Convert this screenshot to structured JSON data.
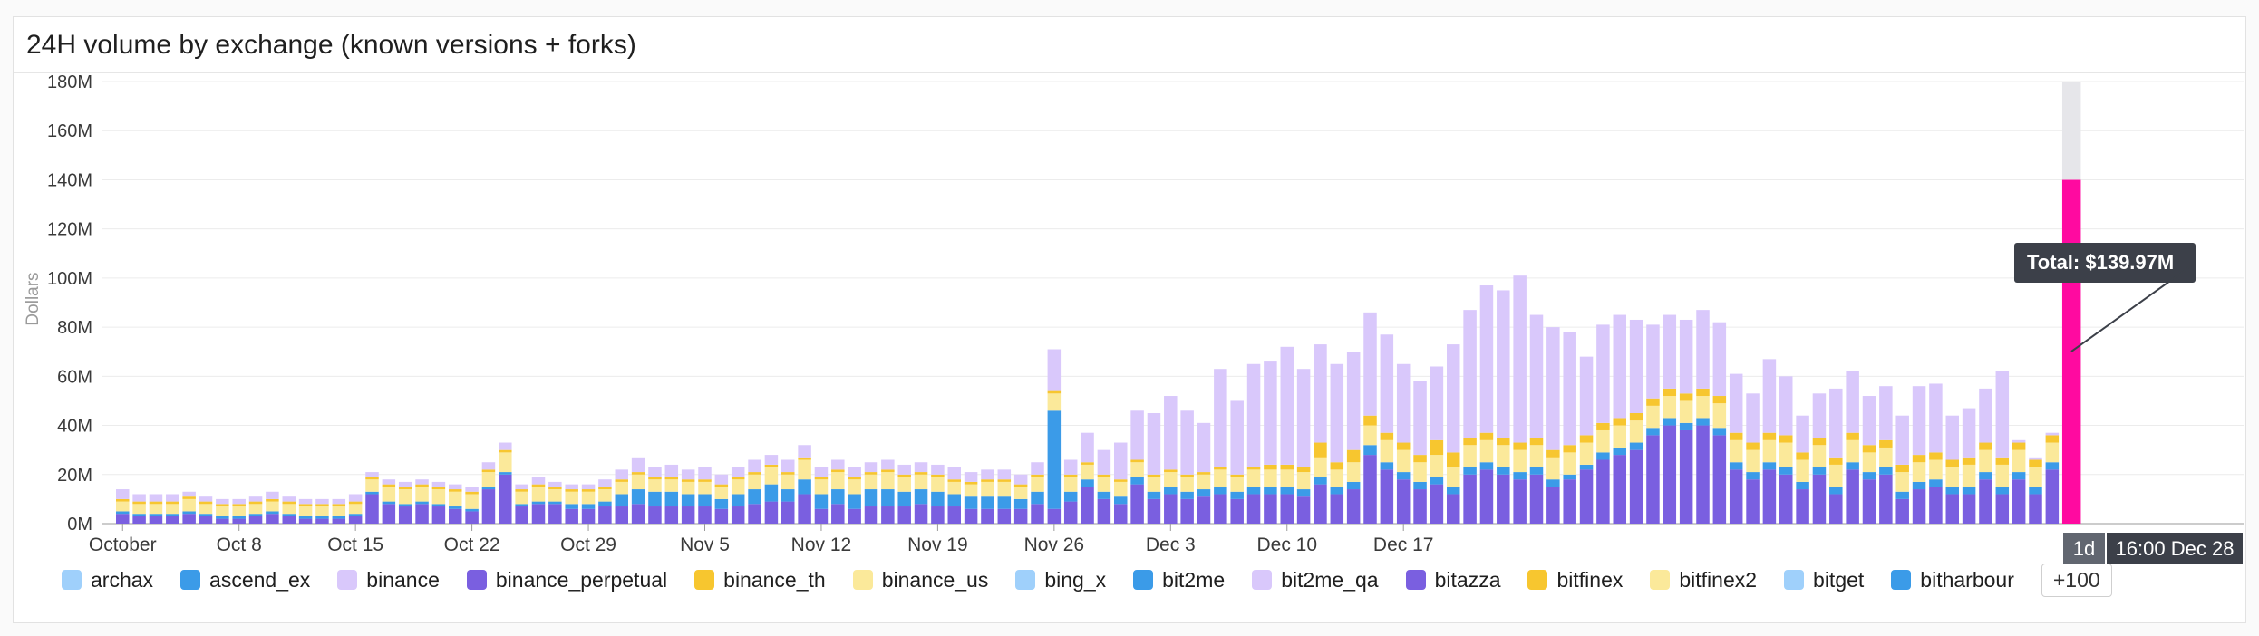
{
  "title": "24H volume by exchange (known versions + forks)",
  "timeframe": {
    "range": "1d",
    "time": "16:00 Dec 28"
  },
  "tooltip": {
    "text": "Total: $139.97M"
  },
  "legend": {
    "items": [
      {
        "name": "archax",
        "color": "#9fd0fb"
      },
      {
        "name": "ascend_ex",
        "color": "#3b9be8"
      },
      {
        "name": "binance",
        "color": "#d9c8fb"
      },
      {
        "name": "binance_perpetual",
        "color": "#7a5fe0"
      },
      {
        "name": "binance_th",
        "color": "#f7c62f"
      },
      {
        "name": "binance_us",
        "color": "#fbe99a"
      },
      {
        "name": "bing_x",
        "color": "#9fd0fb"
      },
      {
        "name": "bit2me",
        "color": "#3b9be8"
      },
      {
        "name": "bit2me_qa",
        "color": "#d9c8fb"
      },
      {
        "name": "bitazza",
        "color": "#7a5fe0"
      },
      {
        "name": "bitfinex",
        "color": "#f7c62f"
      },
      {
        "name": "bitfinex2",
        "color": "#fbe99a"
      },
      {
        "name": "bitget",
        "color": "#9fd0fb"
      },
      {
        "name": "bitharbour",
        "color": "#3b9be8"
      }
    ],
    "more_label": "+100"
  },
  "chart_data": {
    "type": "bar",
    "stacked": true,
    "ylabel": "Dollars",
    "ylim": [
      0,
      180
    ],
    "y_unit": "M",
    "y_ticks": [
      "0M",
      "20M",
      "40M",
      "60M",
      "80M",
      "100M",
      "120M",
      "140M",
      "160M",
      "180M"
    ],
    "x_start": "October 1",
    "x_tick_labels": [
      "October",
      "Oct 8",
      "Oct 15",
      "Oct 22",
      "Oct 29",
      "Nov 5",
      "Nov 12",
      "Nov 19",
      "Nov 26",
      "Dec 3",
      "Dec 10",
      "Dec 17"
    ],
    "grid": true,
    "highlight_color": "#ff0aa0",
    "series": [
      {
        "name": "binance_perpetual",
        "color": "#7a5fe0",
        "values": [
          4,
          3,
          3,
          3,
          4,
          3,
          2,
          2,
          3,
          4,
          3,
          2,
          2,
          2,
          3,
          12,
          8,
          7,
          8,
          7,
          6,
          5,
          14,
          20,
          7,
          8,
          8,
          6,
          6,
          7,
          7,
          8,
          7,
          7,
          7,
          7,
          6,
          7,
          8,
          9,
          9,
          12,
          6,
          8,
          6,
          7,
          7,
          7,
          8,
          7,
          7,
          6,
          6,
          6,
          6,
          8,
          6,
          9,
          15,
          10,
          8,
          16,
          10,
          12,
          10,
          11,
          12,
          10,
          12,
          12,
          12,
          11,
          16,
          12,
          14,
          28,
          22,
          18,
          14,
          16,
          12,
          20,
          22,
          20,
          18,
          20,
          15,
          18,
          22,
          26,
          28,
          30,
          36,
          40,
          38,
          40,
          36,
          22,
          18,
          22,
          20,
          14,
          20,
          12,
          22,
          18,
          20,
          10,
          14,
          15,
          12,
          12,
          18,
          12,
          18,
          12,
          22
        ]
      },
      {
        "name": "bit2me",
        "color": "#3b9be8",
        "values": [
          1,
          1,
          1,
          1,
          1,
          1,
          1,
          1,
          1,
          1,
          1,
          1,
          1,
          1,
          1,
          1,
          1,
          1,
          1,
          1,
          1,
          1,
          1,
          1,
          1,
          1,
          1,
          2,
          2,
          2,
          5,
          6,
          6,
          6,
          5,
          5,
          4,
          5,
          6,
          7,
          5,
          6,
          6,
          6,
          6,
          7,
          7,
          6,
          6,
          6,
          5,
          5,
          5,
          5,
          4,
          5,
          40,
          4,
          3,
          3,
          3,
          3,
          3,
          3,
          3,
          3,
          3,
          3,
          3,
          3,
          3,
          3,
          3,
          3,
          3,
          4,
          3,
          3,
          3,
          3,
          3,
          3,
          3,
          3,
          3,
          3,
          3,
          2,
          2,
          3,
          3,
          3,
          3,
          3,
          3,
          3,
          3,
          3,
          3,
          3,
          3,
          3,
          3,
          3,
          3,
          3,
          3,
          3,
          3,
          3,
          3,
          3,
          3,
          3,
          3,
          3,
          3
        ]
      },
      {
        "name": "binance_us",
        "color": "#fbe99a",
        "values": [
          4,
          4,
          4,
          4,
          5,
          4,
          4,
          4,
          4,
          4,
          4,
          4,
          4,
          4,
          4,
          5,
          6,
          6,
          6,
          6,
          6,
          6,
          6,
          8,
          5,
          6,
          5,
          5,
          5,
          5,
          5,
          6,
          5,
          5,
          5,
          5,
          5,
          6,
          6,
          7,
          6,
          8,
          6,
          7,
          6,
          6,
          7,
          6,
          6,
          6,
          5,
          5,
          6,
          6,
          5,
          6,
          7,
          6,
          6,
          6,
          6,
          6,
          6,
          6,
          6,
          6,
          7,
          6,
          7,
          7,
          7,
          7,
          8,
          7,
          8,
          8,
          9,
          9,
          8,
          9,
          8,
          9,
          9,
          9,
          9,
          9,
          9,
          9,
          9,
          9,
          9,
          9,
          9,
          9,
          9,
          9,
          10,
          9,
          9,
          9,
          10,
          9,
          9,
          9,
          9,
          8,
          8,
          8,
          8,
          8,
          8,
          9,
          9,
          9,
          9,
          8,
          8
        ]
      },
      {
        "name": "bitfinex",
        "color": "#f7c62f",
        "values": [
          1,
          1,
          1,
          1,
          1,
          1,
          1,
          1,
          1,
          1,
          1,
          1,
          1,
          1,
          1,
          1,
          1,
          1,
          1,
          1,
          1,
          1,
          1,
          1,
          1,
          1,
          1,
          1,
          1,
          1,
          1,
          1,
          1,
          1,
          1,
          1,
          1,
          1,
          1,
          1,
          1,
          1,
          1,
          1,
          1,
          1,
          1,
          1,
          1,
          1,
          1,
          1,
          1,
          1,
          1,
          1,
          1,
          1,
          1,
          1,
          1,
          1,
          1,
          1,
          1,
          1,
          1,
          1,
          1,
          2,
          2,
          2,
          6,
          3,
          5,
          4,
          3,
          3,
          3,
          6,
          6,
          3,
          3,
          3,
          3,
          3,
          3,
          3,
          3,
          3,
          3,
          3,
          3,
          3,
          3,
          3,
          3,
          3,
          3,
          3,
          3,
          3,
          3,
          3,
          3,
          3,
          3,
          3,
          3,
          3,
          3,
          3,
          3,
          3,
          3,
          3,
          3
        ]
      },
      {
        "name": "binance",
        "color": "#d9c8fb",
        "values": [
          4,
          3,
          3,
          3,
          2,
          2,
          2,
          2,
          2,
          3,
          2,
          2,
          2,
          2,
          3,
          2,
          2,
          2,
          2,
          2,
          2,
          2,
          3,
          3,
          2,
          3,
          2,
          2,
          2,
          3,
          4,
          6,
          4,
          5,
          4,
          5,
          4,
          4,
          5,
          4,
          5,
          5,
          4,
          4,
          4,
          4,
          4,
          4,
          4,
          4,
          5,
          4,
          4,
          4,
          4,
          5,
          17,
          6,
          12,
          10,
          15,
          20,
          25,
          30,
          26,
          20,
          40,
          30,
          42,
          42,
          48,
          40,
          40,
          40,
          40,
          42,
          40,
          32,
          30,
          30,
          44,
          52,
          60,
          60,
          68,
          50,
          50,
          46,
          32,
          40,
          42,
          38,
          30,
          30,
          30,
          32,
          30,
          24,
          20,
          30,
          24,
          15,
          18,
          28,
          25,
          20,
          22,
          20,
          28,
          28,
          18,
          20,
          22,
          35,
          1,
          1,
          1
        ]
      }
    ],
    "last_bar": {
      "category": "16:00 Dec 28",
      "total": 139.97
    }
  }
}
